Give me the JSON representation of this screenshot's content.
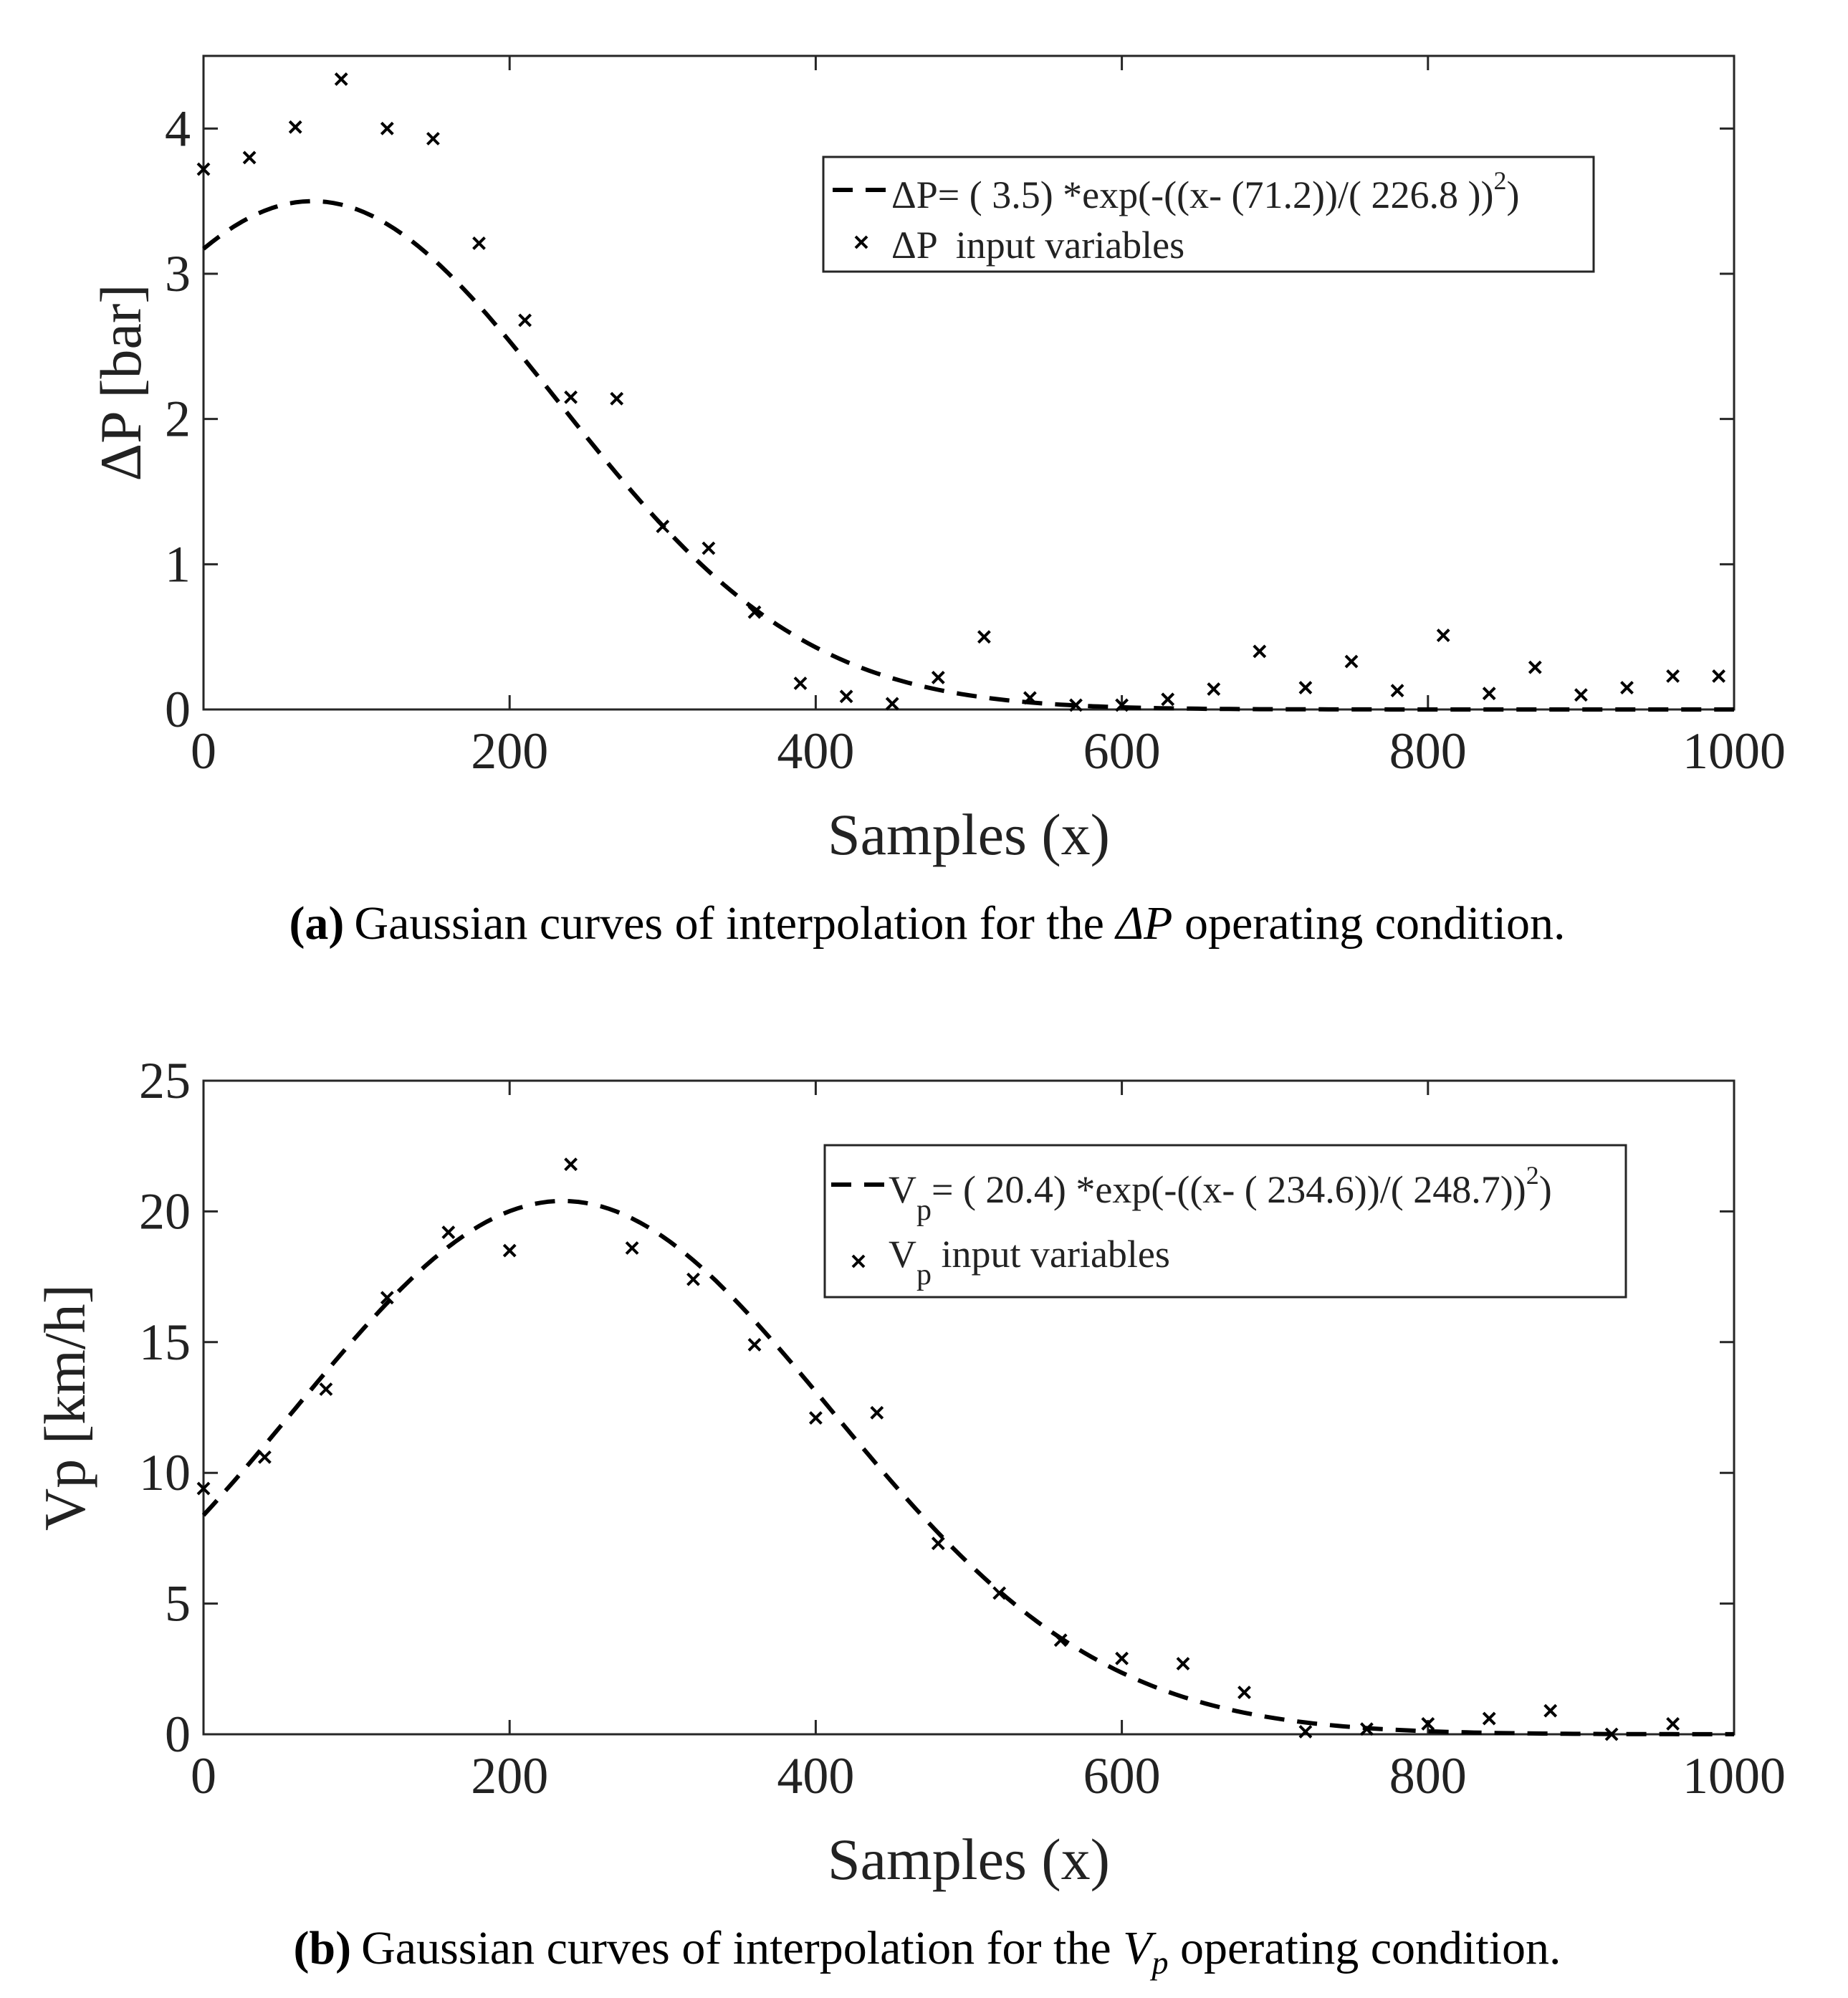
{
  "chart_data": [
    {
      "type": "scatter",
      "panel": "a",
      "xlabel": "Samples (x)",
      "ylabel": "ΔP [bar]",
      "xlim": [
        0,
        1000
      ],
      "ylim": [
        0,
        4.5
      ],
      "xticks": [
        "0",
        "200",
        "400",
        "600",
        "800",
        "1000"
      ],
      "yticks": [
        "0",
        "1",
        "2",
        "3",
        "4"
      ],
      "legend_position": "top-right",
      "fit": {
        "a": 3.5,
        "b": 71.2,
        "c": 226.8
      },
      "series": [
        {
          "name": "fit",
          "legend": {
            "main": "ΔP= ( 3.5) *exp(-((x- (71.2))/( 226.8 ))",
            "sup": "2",
            "tail": ")"
          }
        },
        {
          "name": "input",
          "legend": {
            "main": "ΔP  input variables"
          },
          "x": [
            0,
            30,
            60,
            90,
            120,
            150,
            180,
            210,
            240,
            270,
            300,
            330,
            360,
            390,
            420,
            450,
            480,
            510,
            540,
            570,
            600,
            630,
            660,
            690,
            720,
            750,
            780,
            810,
            840,
            870,
            900,
            930,
            960,
            990
          ],
          "y": [
            3.72,
            3.8,
            4.01,
            4.34,
            4.0,
            3.93,
            3.21,
            2.68,
            2.15,
            2.14,
            1.26,
            1.11,
            0.67,
            0.18,
            0.09,
            0.04,
            0.22,
            0.5,
            0.08,
            0.03,
            0.03,
            0.07,
            0.14,
            0.4,
            0.15,
            0.33,
            0.13,
            0.51,
            0.11,
            0.29,
            0.1,
            0.15,
            0.23,
            0.23
          ]
        }
      ],
      "caption": {
        "label": "(a)",
        "pre": "Gaussian curves of interpolation for the ",
        "sym": "ΔP",
        "sub": "",
        "post": " operating condition."
      }
    },
    {
      "type": "scatter",
      "panel": "b",
      "xlabel": "Samples (x)",
      "ylabel": "Vp [km/h]",
      "xlim": [
        0,
        1000
      ],
      "ylim": [
        0,
        25
      ],
      "xticks": [
        "0",
        "200",
        "400",
        "600",
        "800",
        "1000"
      ],
      "yticks": [
        "0",
        "5",
        "10",
        "15",
        "20",
        "25"
      ],
      "legend_position": "top-right",
      "fit": {
        "a": 20.4,
        "b": 234.6,
        "c": 248.7
      },
      "series": [
        {
          "name": "fit",
          "legend": {
            "main": "V",
            "sub": "p",
            "main2": "= ( 20.4) *exp(-((x- ( 234.6))/( 248.7))",
            "sup": "2",
            "tail": ")"
          }
        },
        {
          "name": "input",
          "legend": {
            "main": "V",
            "sub": "p",
            "main2": " input variables"
          },
          "x": [
            0,
            40,
            80,
            120,
            160,
            200,
            240,
            280,
            320,
            360,
            400,
            440,
            480,
            520,
            560,
            600,
            640,
            680,
            720,
            760,
            800,
            840,
            880,
            920,
            960
          ],
          "y": [
            9.4,
            10.6,
            13.2,
            16.7,
            19.2,
            18.5,
            21.8,
            18.6,
            17.4,
            14.9,
            12.1,
            12.3,
            7.3,
            5.4,
            3.6,
            2.9,
            2.7,
            1.6,
            0.1,
            0.2,
            0.4,
            0.6,
            0.9,
            0.0,
            0.4
          ]
        }
      ],
      "caption": {
        "label": "(b)",
        "pre": "Gaussian curves of interpolation for the ",
        "sym": "V",
        "sub": "p",
        "post": " operating condition."
      }
    }
  ]
}
